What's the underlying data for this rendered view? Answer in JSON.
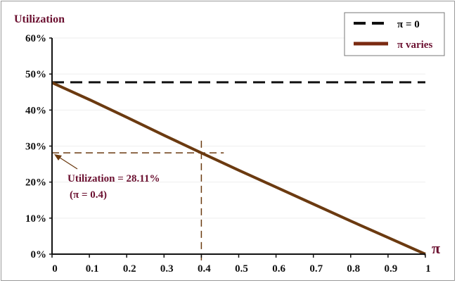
{
  "chart_data": {
    "type": "line",
    "title": "",
    "ylabel": "Utilization",
    "xlabel": "π",
    "xlim": [
      0,
      1
    ],
    "ylim": [
      0,
      60
    ],
    "x_ticks": [
      "0",
      "0.1",
      "0.2",
      "0.3",
      "0.4",
      "0.5",
      "0.6",
      "0.7",
      "0.8",
      "0.9",
      "1"
    ],
    "y_ticks": [
      "0%",
      "10%",
      "20%",
      "30%",
      "40%",
      "50%",
      "60%"
    ],
    "grid": true,
    "legend_position": "top-right",
    "series": [
      {
        "name": "π = 0",
        "style": "dashed",
        "color": "#111111",
        "x": [
          0,
          1
        ],
        "y": [
          47.7,
          47.7
        ]
      },
      {
        "name": "π varies",
        "style": "solid",
        "color": "#6b3a10",
        "x": [
          0,
          0.1,
          0.2,
          0.3,
          0.4,
          0.5,
          0.6,
          0.7,
          0.8,
          0.9,
          1
        ],
        "y": [
          47.6,
          42.9,
          38.0,
          33.0,
          28.11,
          23.3,
          18.6,
          13.9,
          9.2,
          4.6,
          0
        ]
      }
    ],
    "annotation": {
      "line1": "Utilization = 28.11%",
      "line2": "(π = 0.4)",
      "x": 0.4,
      "y": 28.11,
      "color": "#6b3a10"
    }
  }
}
